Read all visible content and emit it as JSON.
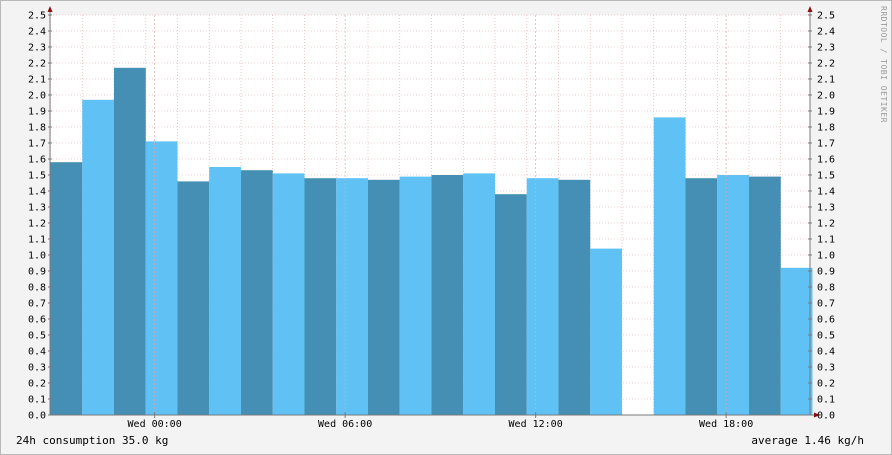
{
  "chart_data": {
    "type": "bar",
    "ylim": [
      0,
      2.5
    ],
    "yticks": [
      "0.0",
      "0.1",
      "0.2",
      "0.3",
      "0.4",
      "0.5",
      "0.6",
      "0.7",
      "0.8",
      "0.9",
      "1.0",
      "1.1",
      "1.2",
      "1.3",
      "1.4",
      "1.5",
      "1.6",
      "1.7",
      "1.8",
      "1.9",
      "2.0",
      "2.1",
      "2.2",
      "2.3",
      "2.4",
      "2.5"
    ],
    "xtick_labels": [
      "Wed 00:00",
      "Wed 06:00",
      "Wed 12:00",
      "Wed 18:00"
    ],
    "values": [
      1.58,
      1.97,
      2.17,
      1.71,
      1.46,
      1.55,
      1.53,
      1.51,
      1.48,
      1.48,
      1.47,
      1.49,
      1.5,
      1.51,
      1.38,
      1.48,
      1.47,
      1.04,
      null,
      1.86,
      1.48,
      1.5,
      1.49,
      0.92
    ],
    "colors": {
      "dark": "#458fb4",
      "light": "#60c1f5",
      "grid": "#e8a5a5",
      "axis": "#8c1010"
    }
  },
  "footer": {
    "left": "24h consumption 35.0 kg",
    "right": "average 1.46 kg/h"
  },
  "watermark": "RRDTOOL / TOBI OETIKER"
}
